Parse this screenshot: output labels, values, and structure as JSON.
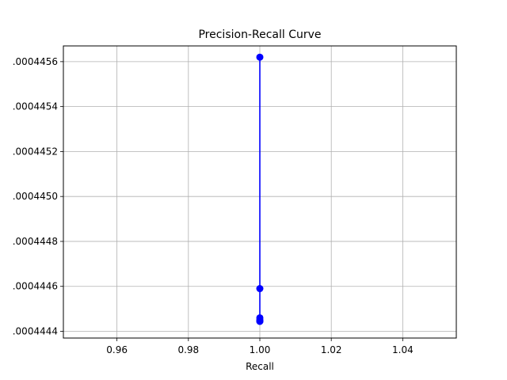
{
  "chart_data": {
    "type": "line",
    "title": "Precision-Recall Curve",
    "xlabel": "Recall",
    "ylabel": "",
    "xlim": [
      0.945,
      1.055
    ],
    "ylim": [
      0.00044437,
      0.00044567
    ],
    "grid": true,
    "line_color": "#0000ff",
    "marker": "circle",
    "x_ticks": [
      0.96,
      0.98,
      1.0,
      1.02,
      1.04
    ],
    "x_tick_labels": [
      "0.96",
      "0.98",
      "1.00",
      "1.02",
      "1.04"
    ],
    "y_ticks": [
      0.0004444,
      0.0004446,
      0.0004448,
      0.000445,
      0.0004452,
      0.0004454,
      0.0004456
    ],
    "y_tick_labels": [
      ".0004444",
      ".0004446",
      ".0004448",
      ".0004450",
      ".0004452",
      ".0004454",
      ".0004456"
    ],
    "series": [
      {
        "x": [
          1.0,
          1.0,
          1.0,
          1.0,
          1.0,
          1.0,
          1.0
        ],
        "y": [
          0.00044562,
          0.00044459,
          0.00044446,
          0.00044445,
          0.000444447,
          0.000444445,
          0.000444444
        ]
      }
    ]
  }
}
